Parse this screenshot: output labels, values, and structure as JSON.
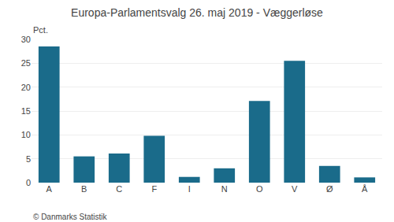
{
  "chart_data": {
    "type": "bar",
    "title": "Europa-Parlamentsvalg 26. maj 2019 - Væggerløse",
    "ylabel": "Pct.",
    "annotations": [
      "© Danmarks Statistik"
    ],
    "categories": [
      "A",
      "B",
      "C",
      "F",
      "I",
      "N",
      "O",
      "V",
      "Ø",
      "Å"
    ],
    "values": [
      28.5,
      5.5,
      6.1,
      9.8,
      1.2,
      3.0,
      17.1,
      25.5,
      3.5,
      1.1
    ],
    "color": "#1a6b8a",
    "ylim": [
      0,
      30
    ],
    "yticks": [
      0,
      5,
      10,
      15,
      20,
      25,
      30
    ],
    "grid": true
  }
}
